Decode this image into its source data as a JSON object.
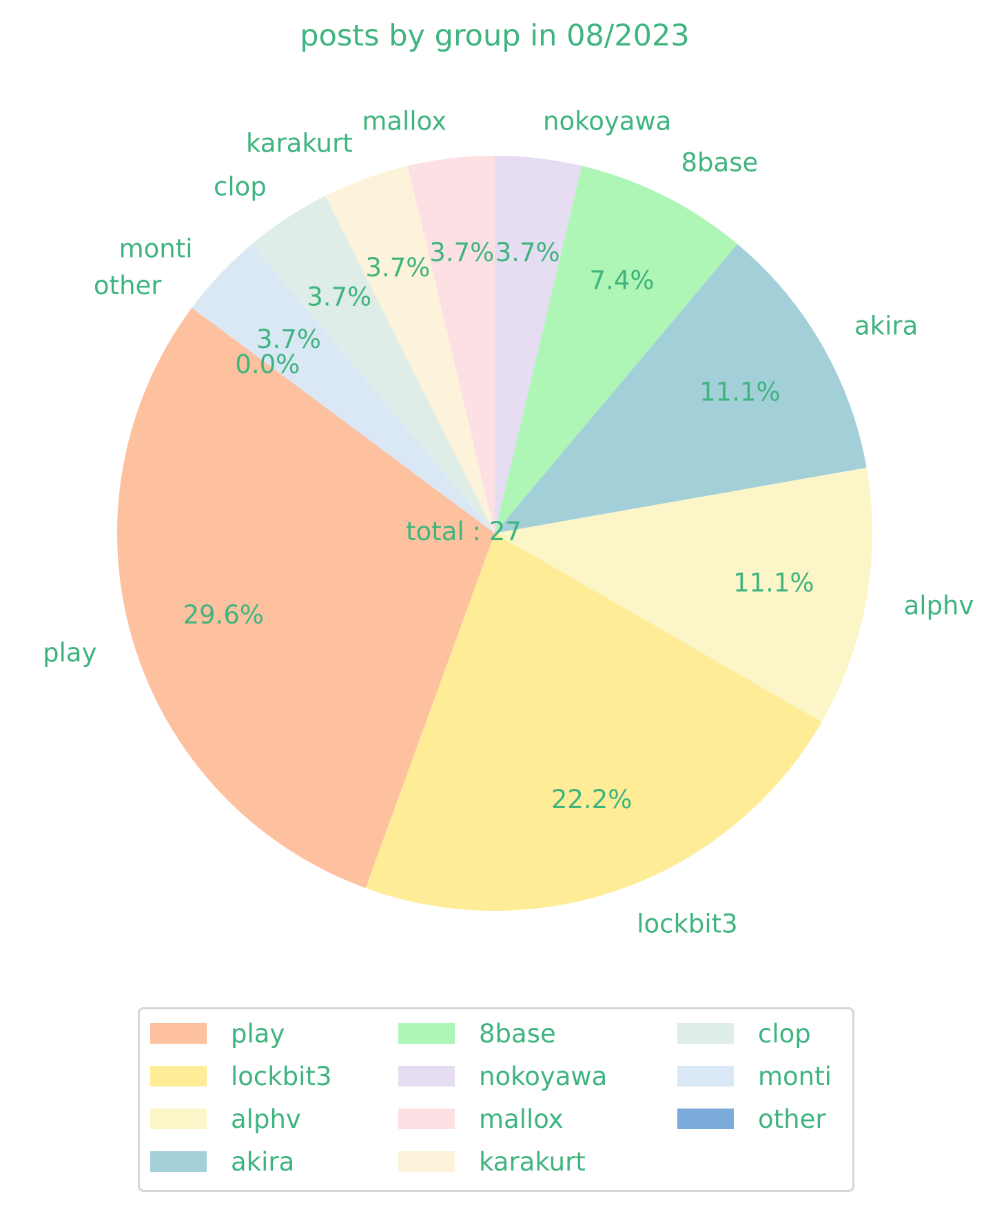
{
  "chart_data": {
    "type": "pie",
    "title": "posts by group in 08/2023",
    "center_label": "total : 27",
    "total": 27,
    "text_color": "#3fb47f",
    "start_angle_deg": 90,
    "direction": "clockwise",
    "legend_position": "bottom",
    "slices": [
      {
        "label": "nokoyawa",
        "value": 1,
        "pct_label": "3.7%",
        "color": "#e6ddf3"
      },
      {
        "label": "8base",
        "value": 2,
        "pct_label": "7.4%",
        "color": "#adf6b5"
      },
      {
        "label": "akira",
        "value": 3,
        "pct_label": "11.1%",
        "color": "#a3cfd9"
      },
      {
        "label": "alphv",
        "value": 3,
        "pct_label": "11.1%",
        "color": "#fbf5c7"
      },
      {
        "label": "lockbit3",
        "value": 6,
        "pct_label": "22.2%",
        "color": "#feec96"
      },
      {
        "label": "play",
        "value": 8,
        "pct_label": "29.6%",
        "color": "#fec1a0"
      },
      {
        "label": "other",
        "value": 0,
        "pct_label": "0.0%",
        "color": "#7aabda"
      },
      {
        "label": "monti",
        "value": 1,
        "pct_label": "3.7%",
        "color": "#dae8f6"
      },
      {
        "label": "clop",
        "value": 1,
        "pct_label": "3.7%",
        "color": "#dfede9"
      },
      {
        "label": "karakurt",
        "value": 1,
        "pct_label": "3.7%",
        "color": "#fdf3db"
      },
      {
        "label": "mallox",
        "value": 1,
        "pct_label": "3.7%",
        "color": "#fce0e4"
      }
    ],
    "legend": [
      {
        "label": "play",
        "color": "#fec1a0"
      },
      {
        "label": "lockbit3",
        "color": "#feec96"
      },
      {
        "label": "alphv",
        "color": "#fbf5c7"
      },
      {
        "label": "akira",
        "color": "#a3cfd9"
      },
      {
        "label": "8base",
        "color": "#adf6b5"
      },
      {
        "label": "nokoyawa",
        "color": "#e6ddf3"
      },
      {
        "label": "mallox",
        "color": "#fce0e4"
      },
      {
        "label": "karakurt",
        "color": "#fdf3db"
      },
      {
        "label": "clop",
        "color": "#dfede9"
      },
      {
        "label": "monti",
        "color": "#dae8f6"
      },
      {
        "label": "other",
        "color": "#7aabda"
      }
    ]
  }
}
